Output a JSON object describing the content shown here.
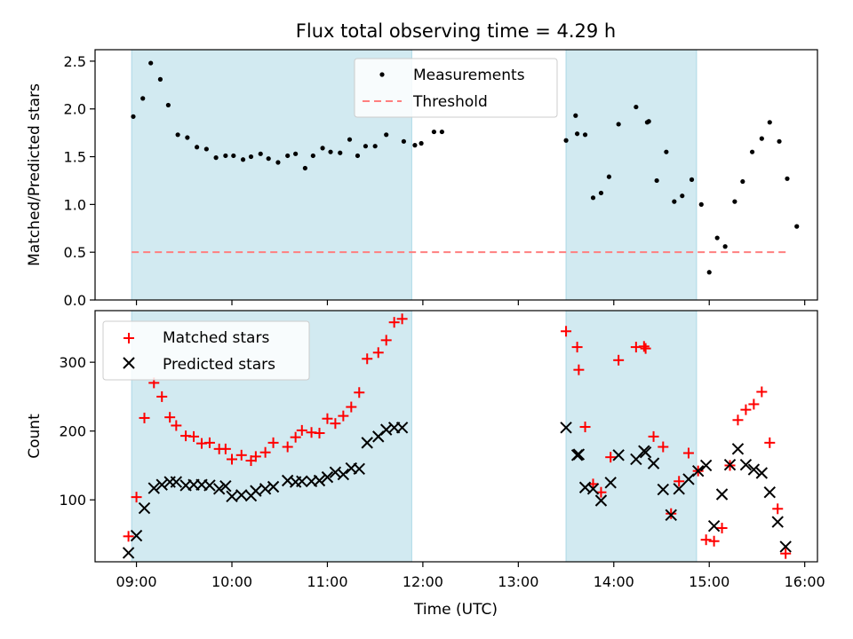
{
  "title": "Flux total observing time = 4.29 h",
  "xlabel": "Time (UTC)",
  "x_tick_labels": [
    "09:00",
    "10:00",
    "11:00",
    "12:00",
    "13:00",
    "14:00",
    "15:00",
    "16:00"
  ],
  "colors": {
    "shade": "#add8e6",
    "measurement": "#000000",
    "threshold": "#ff7f7f",
    "matched": "#ff0000",
    "predicted": "#000000"
  },
  "chart_data": [
    {
      "type": "scatter",
      "panel": "top",
      "ylabel": "Matched/Predicted stars",
      "xlim": [
        "08:34",
        "16:08"
      ],
      "ylim": [
        0,
        2.62
      ],
      "y_ticks": [
        0.0,
        0.5,
        1.0,
        1.5,
        2.0,
        2.5
      ],
      "y_tick_labels": [
        "0.0",
        "0.5",
        "1.0",
        "1.5",
        "2.0",
        "2.5"
      ],
      "shaded_intervals": [
        [
          "08:57",
          "11:53"
        ],
        [
          "13:30",
          "14:52"
        ]
      ],
      "legend": {
        "position": "top-center",
        "entries": [
          "Measurements",
          "Threshold"
        ]
      },
      "threshold": {
        "name": "Threshold",
        "value": 0.5,
        "x_range": [
          "08:57",
          "15:48"
        ]
      },
      "series": [
        {
          "name": "Measurements",
          "points": [
            [
              "08:58",
              1.92
            ],
            [
              "09:04",
              2.11
            ],
            [
              "09:09",
              2.48
            ],
            [
              "09:15",
              2.31
            ],
            [
              "09:20",
              2.04
            ],
            [
              "09:26",
              1.73
            ],
            [
              "09:32",
              1.7
            ],
            [
              "09:38",
              1.6
            ],
            [
              "09:44",
              1.58
            ],
            [
              "09:50",
              1.49
            ],
            [
              "09:56",
              1.51
            ],
            [
              "10:01",
              1.51
            ],
            [
              "10:07",
              1.47
            ],
            [
              "10:12",
              1.5
            ],
            [
              "10:18",
              1.53
            ],
            [
              "10:23",
              1.48
            ],
            [
              "10:29",
              1.44
            ],
            [
              "10:35",
              1.51
            ],
            [
              "10:40",
              1.53
            ],
            [
              "10:46",
              1.38
            ],
            [
              "10:51",
              1.51
            ],
            [
              "10:57",
              1.59
            ],
            [
              "11:02",
              1.55
            ],
            [
              "11:08",
              1.54
            ],
            [
              "11:14",
              1.68
            ],
            [
              "11:19",
              1.51
            ],
            [
              "11:24",
              1.61
            ],
            [
              "11:30",
              1.61
            ],
            [
              "11:37",
              1.73
            ],
            [
              "11:48",
              1.66
            ],
            [
              "11:55",
              1.62
            ],
            [
              "11:59",
              1.64
            ],
            [
              "12:07",
              1.76
            ],
            [
              "12:12",
              1.76
            ],
            [
              "13:30",
              1.67
            ],
            [
              "13:36",
              1.93
            ],
            [
              "13:37",
              1.74
            ],
            [
              "13:42",
              1.73
            ],
            [
              "13:47",
              1.07
            ],
            [
              "13:52",
              1.12
            ],
            [
              "13:57",
              1.29
            ],
            [
              "14:03",
              1.84
            ],
            [
              "14:14",
              2.02
            ],
            [
              "14:21",
              1.86
            ],
            [
              "14:22",
              1.87
            ],
            [
              "14:27",
              1.25
            ],
            [
              "14:33",
              1.55
            ],
            [
              "14:38",
              1.03
            ],
            [
              "14:43",
              1.09
            ],
            [
              "14:49",
              1.26
            ],
            [
              "14:55",
              1.0
            ],
            [
              "15:00",
              0.29
            ],
            [
              "15:05",
              0.65
            ],
            [
              "15:10",
              0.56
            ],
            [
              "15:16",
              1.03
            ],
            [
              "15:21",
              1.24
            ],
            [
              "15:27",
              1.55
            ],
            [
              "15:33",
              1.69
            ],
            [
              "15:38",
              1.86
            ],
            [
              "15:44",
              1.66
            ],
            [
              "15:49",
              1.27
            ],
            [
              "15:55",
              0.77
            ]
          ]
        }
      ]
    },
    {
      "type": "scatter",
      "panel": "bottom",
      "ylabel": "Count",
      "xlim": [
        "08:34",
        "16:08"
      ],
      "ylim": [
        10,
        375
      ],
      "y_ticks": [
        100,
        200,
        300
      ],
      "y_tick_labels": [
        "100",
        "200",
        "300"
      ],
      "shaded_intervals": [
        [
          "08:57",
          "11:53"
        ],
        [
          "13:30",
          "14:52"
        ]
      ],
      "legend": {
        "position": "top-left",
        "entries": [
          "Matched stars",
          "Predicted stars"
        ]
      },
      "series": [
        {
          "name": "Matched stars",
          "points": [
            [
              "08:55",
              47
            ],
            [
              "09:00",
              104
            ],
            [
              "09:05",
              219
            ],
            [
              "09:11",
              270
            ],
            [
              "09:16",
              250
            ],
            [
              "09:21",
              220
            ],
            [
              "09:25",
              208
            ],
            [
              "09:31",
              193
            ],
            [
              "09:36",
              192
            ],
            [
              "09:41",
              182
            ],
            [
              "09:46",
              183
            ],
            [
              "09:52",
              174
            ],
            [
              "09:56",
              174
            ],
            [
              "10:00",
              159
            ],
            [
              "10:06",
              165
            ],
            [
              "10:12",
              157
            ],
            [
              "10:15",
              163
            ],
            [
              "10:21",
              169
            ],
            [
              "10:26",
              183
            ],
            [
              "10:35",
              177
            ],
            [
              "10:40",
              191
            ],
            [
              "10:44",
              201
            ],
            [
              "10:50",
              198
            ],
            [
              "10:55",
              197
            ],
            [
              "11:00",
              218
            ],
            [
              "11:05",
              211
            ],
            [
              "11:10",
              222
            ],
            [
              "11:15",
              235
            ],
            [
              "11:20",
              256
            ],
            [
              "11:25",
              305
            ],
            [
              "11:32",
              314
            ],
            [
              "11:37",
              332
            ],
            [
              "11:42",
              358
            ],
            [
              "11:47",
              363
            ],
            [
              "13:30",
              345
            ],
            [
              "13:37",
              322
            ],
            [
              "13:38",
              289
            ],
            [
              "13:42",
              206
            ],
            [
              "13:47",
              123
            ],
            [
              "13:52",
              111
            ],
            [
              "13:58",
              162
            ],
            [
              "14:03",
              303
            ],
            [
              "14:14",
              322
            ],
            [
              "14:19",
              323
            ],
            [
              "14:20",
              320
            ],
            [
              "14:25",
              192
            ],
            [
              "14:31",
              177
            ],
            [
              "14:36",
              80
            ],
            [
              "14:41",
              127
            ],
            [
              "14:47",
              168
            ],
            [
              "14:53",
              142
            ],
            [
              "14:58",
              42
            ],
            [
              "15:03",
              40
            ],
            [
              "15:08",
              59
            ],
            [
              "15:13",
              150
            ],
            [
              "15:18",
              216
            ],
            [
              "15:23",
              231
            ],
            [
              "15:28",
              239
            ],
            [
              "15:33",
              257
            ],
            [
              "15:38",
              183
            ],
            [
              "15:43",
              87
            ],
            [
              "15:48",
              22
            ]
          ]
        },
        {
          "name": "Predicted stars",
          "points": [
            [
              "08:55",
              23
            ],
            [
              "09:00",
              48
            ],
            [
              "09:05",
              88
            ],
            [
              "09:11",
              117
            ],
            [
              "09:16",
              122
            ],
            [
              "09:21",
              126
            ],
            [
              "09:25",
              126
            ],
            [
              "09:31",
              121
            ],
            [
              "09:36",
              122
            ],
            [
              "09:41",
              122
            ],
            [
              "09:46",
              121
            ],
            [
              "09:52",
              116
            ],
            [
              "09:56",
              120
            ],
            [
              "10:00",
              105
            ],
            [
              "10:06",
              107
            ],
            [
              "10:12",
              106
            ],
            [
              "10:15",
              113
            ],
            [
              "10:21",
              116
            ],
            [
              "10:26",
              119
            ],
            [
              "10:35",
              128
            ],
            [
              "10:40",
              126
            ],
            [
              "10:44",
              127
            ],
            [
              "10:50",
              127
            ],
            [
              "10:55",
              128
            ],
            [
              "11:00",
              133
            ],
            [
              "11:05",
              140
            ],
            [
              "11:10",
              137
            ],
            [
              "11:15",
              146
            ],
            [
              "11:20",
              145
            ],
            [
              "11:25",
              183
            ],
            [
              "11:32",
              192
            ],
            [
              "11:37",
              202
            ],
            [
              "11:42",
              205
            ],
            [
              "11:47",
              205
            ],
            [
              "13:30",
              205
            ],
            [
              "13:37",
              165
            ],
            [
              "13:38",
              166
            ],
            [
              "13:42",
              118
            ],
            [
              "13:47",
              116
            ],
            [
              "13:52",
              99
            ],
            [
              "13:58",
              125
            ],
            [
              "14:03",
              165
            ],
            [
              "14:14",
              159
            ],
            [
              "14:19",
              171
            ],
            [
              "14:20",
              169
            ],
            [
              "14:25",
              153
            ],
            [
              "14:31",
              115
            ],
            [
              "14:36",
              78
            ],
            [
              "14:41",
              116
            ],
            [
              "14:47",
              130
            ],
            [
              "14:53",
              142
            ],
            [
              "14:58",
              150
            ],
            [
              "15:03",
              62
            ],
            [
              "15:08",
              108
            ],
            [
              "15:13",
              151
            ],
            [
              "15:18",
              174
            ],
            [
              "15:23",
              151
            ],
            [
              "15:28",
              144
            ],
            [
              "15:33",
              139
            ],
            [
              "15:38",
              111
            ],
            [
              "15:43",
              68
            ],
            [
              "15:48",
              32
            ]
          ]
        }
      ]
    }
  ]
}
